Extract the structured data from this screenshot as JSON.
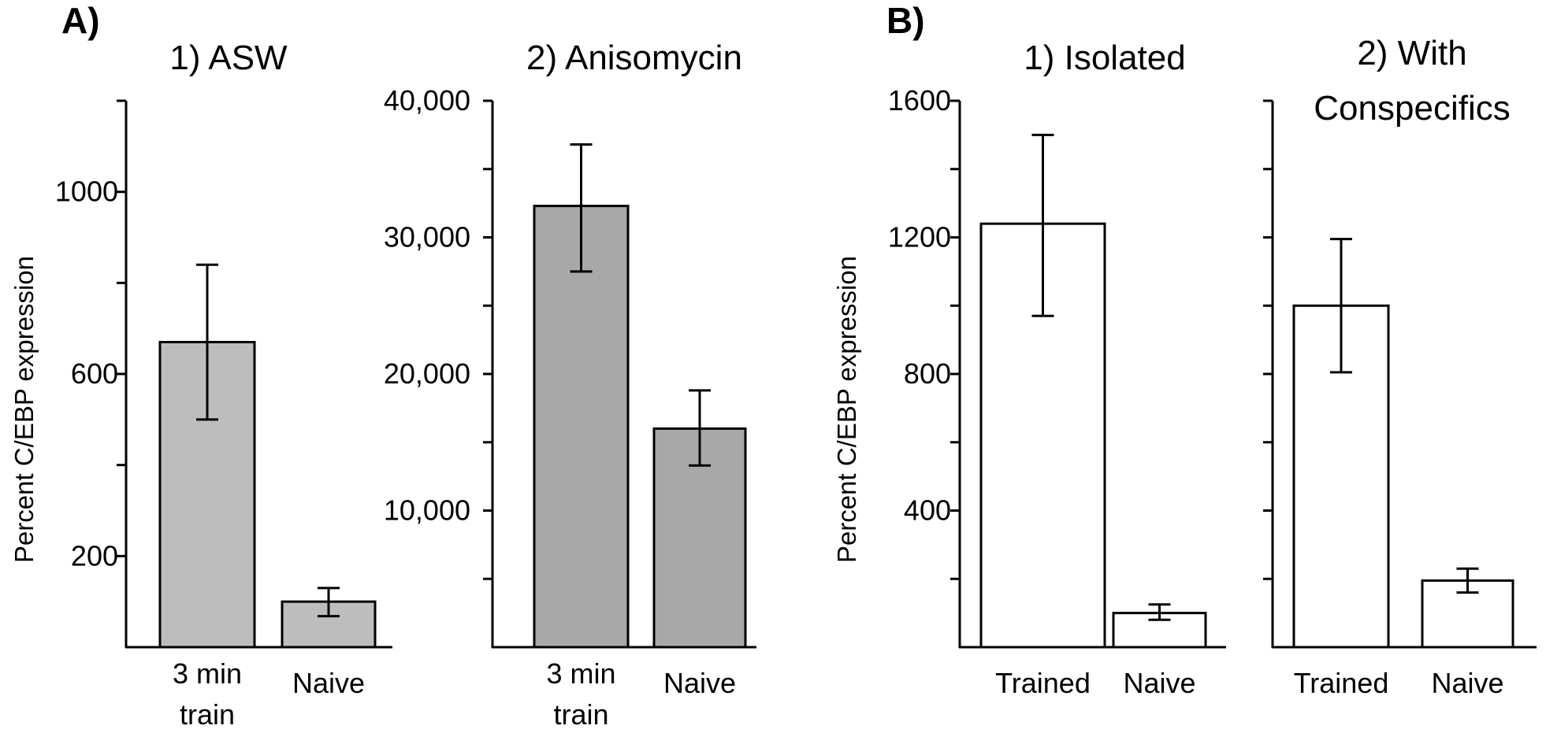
{
  "panels": [
    {
      "letter": "A)"
    },
    {
      "letter": "B)"
    }
  ],
  "ylabel": "Percent C/EBP expression",
  "colors": {
    "gray_bar_1": "#bdbdbd",
    "gray_bar_2": "#a8a8a8",
    "white_bar": "#ffffff",
    "axis": "#000000"
  },
  "chart_data": [
    {
      "type": "bar",
      "panel": "A",
      "title": "1) ASW",
      "categories": [
        "3 min train",
        "Naive"
      ],
      "values": [
        670,
        100
      ],
      "errors": [
        [
          500,
          840
        ],
        [
          68,
          130
        ]
      ],
      "ylabel": "Percent C/EBP expression",
      "ylim": [
        0,
        1200
      ],
      "yticks": [
        200,
        600,
        1000
      ],
      "minor_yticks": [
        400,
        800,
        1200
      ],
      "bar_color": "#bdbdbd"
    },
    {
      "type": "bar",
      "panel": "A",
      "title": "2) Anisomycin",
      "categories": [
        "3 min train",
        "Naive"
      ],
      "values": [
        32300,
        16000
      ],
      "errors": [
        [
          27500,
          36800
        ],
        [
          13300,
          18800
        ]
      ],
      "ylabel": "",
      "ylim": [
        0,
        40000
      ],
      "yticks": [
        10000,
        20000,
        30000,
        40000
      ],
      "ytick_labels": [
        "10,000",
        "20,000",
        "30,000",
        "40,000"
      ],
      "minor_yticks": [
        5000,
        15000,
        25000,
        35000
      ],
      "bar_color": "#a8a8a8"
    },
    {
      "type": "bar",
      "panel": "B",
      "title": "1) Isolated",
      "categories": [
        "Trained",
        "Naive"
      ],
      "values": [
        1240,
        100
      ],
      "errors": [
        [
          970,
          1500
        ],
        [
          80,
          125
        ]
      ],
      "ylabel": "Percent C/EBP expression",
      "ylim": [
        0,
        1600
      ],
      "yticks": [
        400,
        800,
        1200,
        1600
      ],
      "minor_yticks": [
        200,
        600,
        1000,
        1400
      ],
      "bar_color": "#ffffff"
    },
    {
      "type": "bar",
      "panel": "B",
      "title": "2) With Conspecifics",
      "title_lines": [
        "2) With",
        "Conspecifics"
      ],
      "categories": [
        "Trained",
        "Naive"
      ],
      "values": [
        1000,
        195
      ],
      "errors": [
        [
          805,
          1195
        ],
        [
          160,
          230
        ]
      ],
      "ylabel": "",
      "ylim": [
        0,
        1600
      ],
      "yticks": [],
      "minor_yticks": [
        200,
        400,
        600,
        800,
        1000,
        1200,
        1400,
        1600
      ],
      "bar_color": "#ffffff"
    }
  ]
}
